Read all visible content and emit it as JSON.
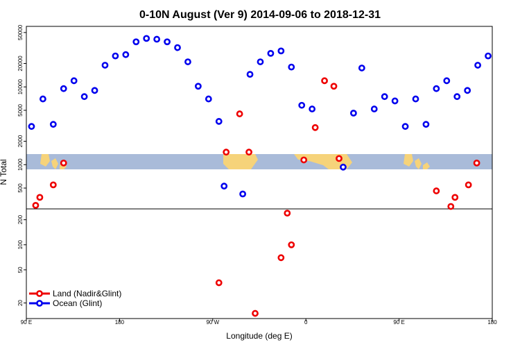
{
  "chart_data": {
    "type": "scatter",
    "title": "0-10N August (Ver 9)   2014-09-06 to 2018-12-31",
    "xlabel": "Longitude (deg E)",
    "ylabel": "N Total",
    "x_ticks": [
      "90 E",
      "180",
      "90 W",
      "0",
      "90 E",
      "180"
    ],
    "upper_ticks": [
      "50000",
      "20000",
      "10000",
      "5000",
      "2000",
      "1000",
      "500"
    ],
    "lower_ticks": [
      "200",
      "100",
      "50",
      "20"
    ],
    "y_scale": "log",
    "x_range": [
      90,
      540
    ],
    "upper_ylim": [
      270,
      60000
    ],
    "lower_ylim": [
      13,
      270
    ],
    "grid": false,
    "legend_position": "bottom-left",
    "background_map": "equatorial land/sea strip, 0-10N",
    "colors": {
      "land": "#ee0000",
      "ocean": "#0000ee",
      "sea": "#a9bbd9",
      "land_fill": "#f6d37a"
    },
    "series": [
      {
        "name": "Land (Nadir&Glint)",
        "color": "#ee0000",
        "points": [
          [
            99,
            300
          ],
          [
            103,
            380
          ],
          [
            116,
            550
          ],
          [
            126,
            1050
          ],
          [
            276,
            35
          ],
          [
            283,
            1450
          ],
          [
            296,
            4500
          ],
          [
            305,
            1450
          ],
          [
            311,
            15
          ],
          [
            336,
            70
          ],
          [
            342,
            240
          ],
          [
            346,
            100
          ],
          [
            358,
            1150
          ],
          [
            369,
            3000
          ],
          [
            378,
            12000
          ],
          [
            387,
            10200
          ],
          [
            392,
            1200
          ],
          [
            486,
            460
          ],
          [
            500,
            290
          ],
          [
            504,
            380
          ],
          [
            517,
            550
          ],
          [
            525,
            1050
          ]
        ]
      },
      {
        "name": "Ocean (Glint)",
        "color": "#0000ee",
        "points": [
          [
            95,
            3100
          ],
          [
            106,
            7000
          ],
          [
            116,
            3300
          ],
          [
            126,
            9500
          ],
          [
            136,
            12000
          ],
          [
            146,
            7500
          ],
          [
            156,
            9000
          ],
          [
            166,
            19000
          ],
          [
            176,
            25000
          ],
          [
            186,
            26000
          ],
          [
            196,
            38000
          ],
          [
            206,
            42000
          ],
          [
            216,
            41000
          ],
          [
            226,
            38000
          ],
          [
            236,
            32000
          ],
          [
            246,
            21000
          ],
          [
            256,
            10200
          ],
          [
            266,
            7000
          ],
          [
            276,
            3600
          ],
          [
            281,
            530
          ],
          [
            299,
            420
          ],
          [
            306,
            14500
          ],
          [
            316,
            21000
          ],
          [
            326,
            27000
          ],
          [
            336,
            29000
          ],
          [
            346,
            18000
          ],
          [
            356,
            5800
          ],
          [
            366,
            5200
          ],
          [
            396,
            930
          ],
          [
            406,
            4600
          ],
          [
            414,
            17500
          ],
          [
            426,
            5200
          ],
          [
            436,
            7500
          ],
          [
            446,
            6600
          ],
          [
            456,
            3100
          ],
          [
            466,
            7000
          ],
          [
            476,
            3300
          ],
          [
            486,
            9500
          ],
          [
            496,
            12000
          ],
          [
            506,
            7500
          ],
          [
            516,
            9000
          ],
          [
            526,
            19000
          ],
          [
            536,
            25000
          ]
        ]
      }
    ]
  }
}
